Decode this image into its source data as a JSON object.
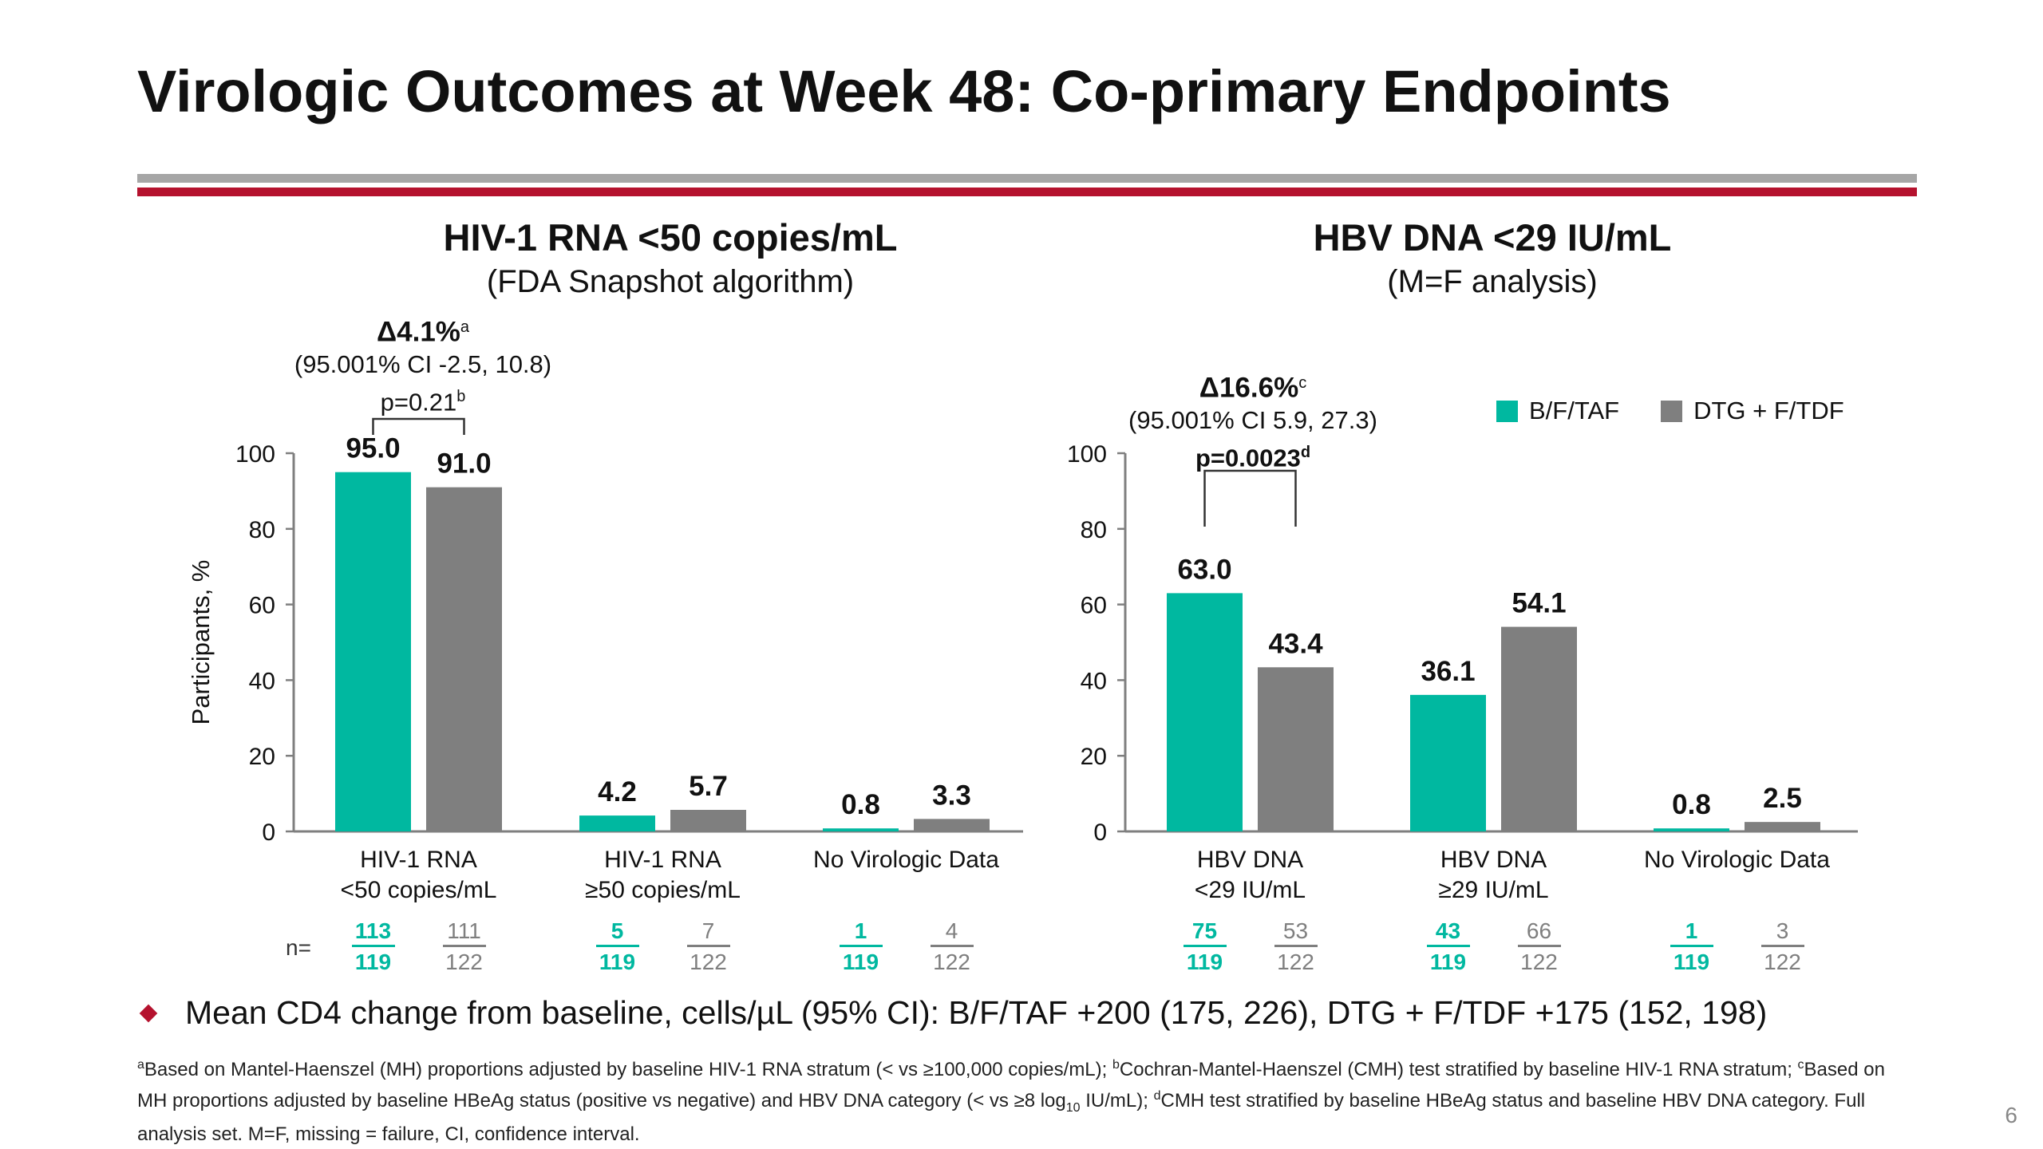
{
  "title": "Virologic Outcomes at Week 48: Co-primary Endpoints",
  "colors": {
    "bftaf": "#00b8a0",
    "dtg": "#7f7f7f",
    "accent_red": "#b5122e",
    "rule_gray": "#a6a6a6"
  },
  "legend": [
    {
      "label": "B/F/TAF",
      "color": "#00b8a0"
    },
    {
      "label": "DTG + F/TDF",
      "color": "#7f7f7f"
    }
  ],
  "left_panel": {
    "title": "HIV-1 RNA <50 copies/mL",
    "subtitle": "(FDA Snapshot algorithm)",
    "delta": "Δ4.1%",
    "delta_sup": "a",
    "ci": "(95.001% CI -2.5, 10.8)",
    "p": "p=0.21",
    "p_sup": "b"
  },
  "right_panel": {
    "title": "HBV DNA <29 IU/mL",
    "subtitle": "(M=F analysis)",
    "delta": "Δ16.6%",
    "delta_sup": "c",
    "ci": "(95.001% CI 5.9, 27.3)",
    "p": "p=0.0023",
    "p_sup": "d"
  },
  "n_label": "n=",
  "chart_data": [
    {
      "type": "bar",
      "ylabel": "Participants, %",
      "ylim": [
        0,
        100
      ],
      "yticks": [
        0,
        20,
        40,
        60,
        80,
        100
      ],
      "categories": [
        "HIV-1 RNA\n<50 copies/mL",
        "HIV-1 RNA\n≥50 copies/mL",
        "No Virologic Data"
      ],
      "series": [
        {
          "name": "B/F/TAF",
          "values": [
            95.0,
            4.2,
            0.8
          ],
          "labels": [
            "95.0",
            "4.2",
            "0.8"
          ]
        },
        {
          "name": "DTG + F/TDF",
          "values": [
            91.0,
            5.7,
            3.3
          ],
          "labels": [
            "91.0",
            "5.7",
            "3.3"
          ]
        }
      ],
      "n": [
        {
          "bftaf": [
            "113",
            "119"
          ],
          "dtg": [
            "111",
            "122"
          ]
        },
        {
          "bftaf": [
            "5",
            "119"
          ],
          "dtg": [
            "7",
            "122"
          ]
        },
        {
          "bftaf": [
            "1",
            "119"
          ],
          "dtg": [
            "4",
            "122"
          ]
        }
      ]
    },
    {
      "type": "bar",
      "ylabel": "",
      "ylim": [
        0,
        100
      ],
      "yticks": [
        0,
        20,
        40,
        60,
        80,
        100
      ],
      "categories": [
        "HBV DNA\n<29 IU/mL",
        "HBV DNA\n≥29 IU/mL",
        "No Virologic Data"
      ],
      "series": [
        {
          "name": "B/F/TAF",
          "values": [
            63.0,
            36.1,
            0.8
          ],
          "labels": [
            "63.0",
            "36.1",
            "0.8"
          ]
        },
        {
          "name": "DTG + F/TDF",
          "values": [
            43.4,
            54.1,
            2.5
          ],
          "labels": [
            "43.4",
            "54.1",
            "2.5"
          ]
        }
      ],
      "n": [
        {
          "bftaf": [
            "75",
            "119"
          ],
          "dtg": [
            "53",
            "122"
          ]
        },
        {
          "bftaf": [
            "43",
            "119"
          ],
          "dtg": [
            "66",
            "122"
          ]
        },
        {
          "bftaf": [
            "1",
            "119"
          ],
          "dtg": [
            "3",
            "122"
          ]
        }
      ]
    }
  ],
  "bullet": "Mean CD4 change from baseline, cells/µL (95% CI): B/F/TAF +200 (175, 226), DTG + F/TDF +175 (152, 198)",
  "footnote": {
    "a_mark": "a",
    "a_text": "Based on Mantel-Haenszel (MH) proportions adjusted by baseline HIV-1 RNA stratum (< vs ≥100,000 copies/mL); ",
    "b_mark": "b",
    "b_text": "Cochran-Mantel-Haenszel (CMH) test stratified by baseline HIV-1 RNA stratum; ",
    "c_mark": "c",
    "c_text_1": "Based on MH proportions adjusted by baseline HBeAg status (positive vs negative) and HBV DNA category (< vs ≥8 log",
    "c_sub": "10",
    "c_text_2": " IU/mL); ",
    "d_mark": "d",
    "d_text": "CMH test stratified by baseline HBeAg status and baseline HBV DNA category. Full analysis set. M=F, missing = failure, CI, confidence interval."
  },
  "slide_number": "6"
}
